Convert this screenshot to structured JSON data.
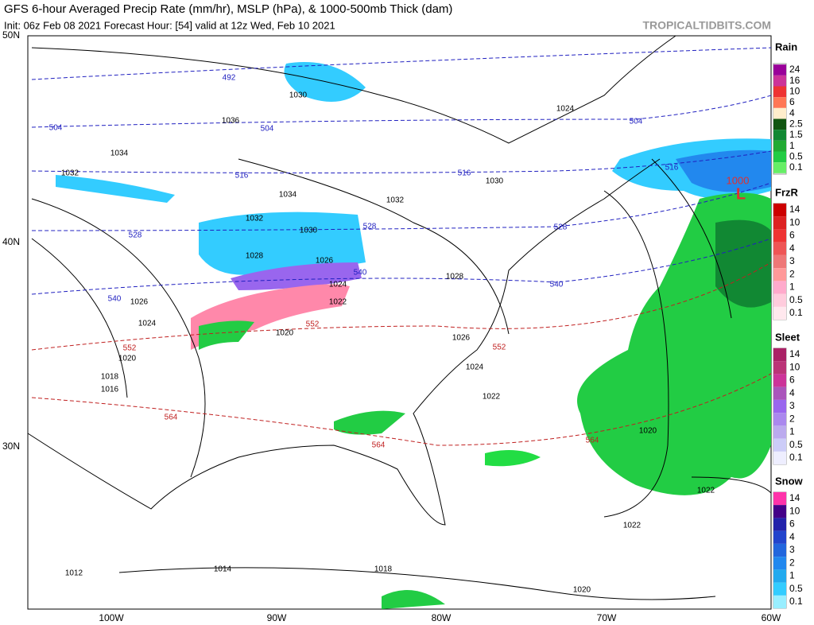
{
  "header": {
    "title": "GFS 6-hour Averaged Precip Rate (mm/hr), MSLP (hPa), & 1000-500mb Thick (dam)",
    "subtitle": "Init: 06z Feb 08 2021   Forecast Hour: [54]   valid at 12z Wed, Feb 10 2021",
    "source": "TROPICALTIDBITS.COM"
  },
  "map": {
    "lat_labels": [
      "50N",
      "40N",
      "30N"
    ],
    "lon_labels": [
      "100W",
      "90W",
      "80W",
      "70W",
      "60W"
    ],
    "isobar_labels": [
      "1030",
      "1036",
      "1034",
      "1032",
      "1034",
      "1032",
      "1030",
      "1028",
      "1026",
      "1024",
      "1022",
      "1026",
      "1024",
      "1020",
      "1018",
      "1016",
      "1020",
      "1028",
      "1026",
      "1024",
      "1022",
      "1020",
      "1022",
      "1022",
      "1012",
      "1014",
      "1018",
      "1020",
      "1024",
      "1030",
      "1032"
    ],
    "thickness_labels": [
      "492",
      "504",
      "504",
      "516",
      "516",
      "516",
      "528",
      "528",
      "528",
      "540",
      "540",
      "540",
      "504"
    ],
    "thickness_labels_warm": [
      "552",
      "552",
      "552",
      "564",
      "564",
      "564"
    ],
    "low": {
      "pressure": "1000",
      "symbol": "L"
    }
  },
  "legend": [
    {
      "title": "Rain",
      "labels": [
        "24",
        "16",
        "10",
        "6",
        "4",
        "2.5",
        "1.5",
        "1",
        "0.5",
        "0.1"
      ]
    },
    {
      "title": "FrzR",
      "labels": [
        "14",
        "10",
        "6",
        "4",
        "3",
        "2",
        "1",
        "0.5",
        "0.1"
      ]
    },
    {
      "title": "Sleet",
      "labels": [
        "14",
        "10",
        "6",
        "4",
        "3",
        "2",
        "1",
        "0.5",
        "0.1"
      ]
    },
    {
      "title": "Snow",
      "labels": [
        "14",
        "10",
        "6",
        "4",
        "3",
        "2",
        "1",
        "0.5",
        "0.1"
      ]
    }
  ]
}
